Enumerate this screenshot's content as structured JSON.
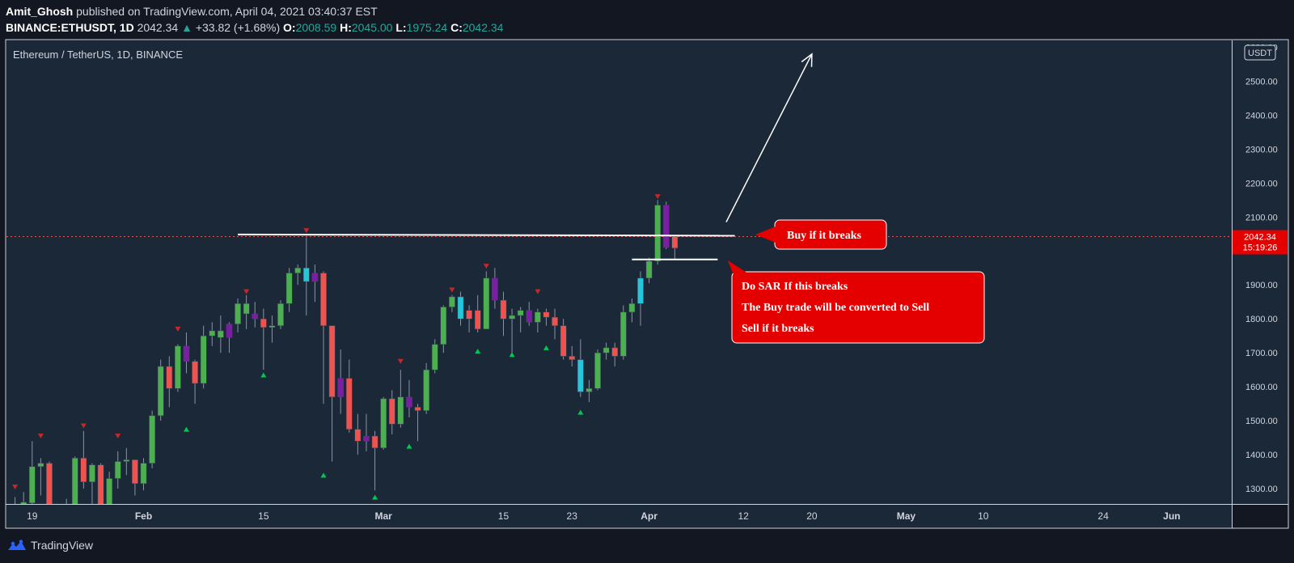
{
  "header": {
    "author": "Amit_Ghosh",
    "published": "published on TradingView.com, April 04, 2021 03:40:37 EST",
    "symbol": "BINANCE:ETHUSDT, 1D",
    "last": "2042.34",
    "change": "+33.82 (+1.68%)",
    "o_label": "O:",
    "o": "2008.59",
    "h_label": "H:",
    "h": "2045.00",
    "l_label": "L:",
    "l": "1975.24",
    "c_label": "C:",
    "c": "2042.34"
  },
  "pane_title": "Ethereum / TetherUS, 1D, BINANCE",
  "currency_badge": "USDT",
  "price_label": {
    "price": "2042.34",
    "countdown": "15:19:26"
  },
  "footer": {
    "brand": "TradingView"
  },
  "colors": {
    "background": "#1b2838",
    "frame": "#131722",
    "up": "#4caf50",
    "down": "#ef5350",
    "cyan": "#26c6da",
    "purple": "#7b1fa2",
    "callout": "#e50000",
    "marker_up": "#00c853",
    "marker_down": "#c62828"
  },
  "annotations": {
    "buy_callout": "Buy if it breaks",
    "sar_lines": [
      "Do SAR If this breaks",
      "The Buy trade will be converted to Sell",
      "Sell if it breaks"
    ]
  },
  "chart_data": {
    "type": "candlestick",
    "title": "Ethereum / TetherUS, 1D, BINANCE",
    "y_ticks": [
      "2600.00",
      "2500.00",
      "2400.00",
      "2300.00",
      "2200.00",
      "2100.00",
      "1900.00",
      "1800.00",
      "1700.00",
      "1600.00",
      "1500.00",
      "1400.00",
      "1300.00"
    ],
    "x_ticks": [
      {
        "label": "19",
        "date": "2021-01-19"
      },
      {
        "label": "Feb",
        "date": "2021-02-01"
      },
      {
        "label": "15",
        "date": "2021-02-15"
      },
      {
        "label": "Mar",
        "date": "2021-03-01"
      },
      {
        "label": "15",
        "date": "2021-03-15"
      },
      {
        "label": "23",
        "date": "2021-03-23"
      },
      {
        "label": "Apr",
        "date": "2021-04-01"
      },
      {
        "label": "12",
        "date": "2021-04-12"
      },
      {
        "label": "20",
        "date": "2021-04-20"
      },
      {
        "label": "May",
        "date": "2021-05-01"
      },
      {
        "label": "10",
        "date": "2021-05-10"
      },
      {
        "label": "24",
        "date": "2021-05-24"
      },
      {
        "label": "Jun",
        "date": "2021-06-01"
      }
    ],
    "ylim": [
      1255,
      2620
    ],
    "xlim": [
      "2021-01-16",
      "2021-06-08"
    ],
    "grid": false,
    "current_price": 2042.34,
    "resistance": {
      "price": 2045,
      "from": "2021-02-12",
      "to": "2021-04-11"
    },
    "support": {
      "price": 1975,
      "from": "2021-03-30",
      "to": "2021-04-09"
    },
    "arrow": {
      "from": {
        "date": "2021-04-10",
        "price": 2085
      },
      "to": {
        "date": "2021-04-20",
        "price": 2580
      }
    },
    "candles": [
      {
        "date": "2021-01-17",
        "o": 1235,
        "h": 1275,
        "l": 1180,
        "c": 1230,
        "k": "down"
      },
      {
        "date": "2021-01-18",
        "o": 1232,
        "h": 1290,
        "l": 1215,
        "c": 1260,
        "k": "up"
      },
      {
        "date": "2021-01-19",
        "o": 1258,
        "h": 1440,
        "l": 1240,
        "c": 1365,
        "k": "up"
      },
      {
        "date": "2021-01-20",
        "o": 1365,
        "h": 1390,
        "l": 1280,
        "c": 1375,
        "k": "up"
      },
      {
        "date": "2021-01-21",
        "o": 1375,
        "h": 1380,
        "l": 1120,
        "c": 1110,
        "k": "down"
      },
      {
        "date": "2021-01-22",
        "o": 1110,
        "h": 1250,
        "l": 1100,
        "c": 1235,
        "k": "up"
      },
      {
        "date": "2021-01-23",
        "o": 1235,
        "h": 1270,
        "l": 1215,
        "c": 1230,
        "k": "down"
      },
      {
        "date": "2021-01-24",
        "o": 1230,
        "h": 1395,
        "l": 1225,
        "c": 1390,
        "k": "up"
      },
      {
        "date": "2021-01-25",
        "o": 1390,
        "h": 1470,
        "l": 1300,
        "c": 1320,
        "k": "down"
      },
      {
        "date": "2021-01-26",
        "o": 1320,
        "h": 1375,
        "l": 1250,
        "c": 1370,
        "k": "up"
      },
      {
        "date": "2021-01-27",
        "o": 1370,
        "h": 1375,
        "l": 1240,
        "c": 1250,
        "k": "down"
      },
      {
        "date": "2021-01-28",
        "o": 1250,
        "h": 1350,
        "l": 1235,
        "c": 1330,
        "k": "up"
      },
      {
        "date": "2021-01-29",
        "o": 1330,
        "h": 1410,
        "l": 1300,
        "c": 1380,
        "k": "up"
      },
      {
        "date": "2021-01-30",
        "o": 1380,
        "h": 1420,
        "l": 1340,
        "c": 1385,
        "k": "up"
      },
      {
        "date": "2021-01-31",
        "o": 1385,
        "h": 1385,
        "l": 1280,
        "c": 1315,
        "k": "down"
      },
      {
        "date": "2021-02-01",
        "o": 1315,
        "h": 1390,
        "l": 1295,
        "c": 1375,
        "k": "up"
      },
      {
        "date": "2021-02-02",
        "o": 1375,
        "h": 1530,
        "l": 1360,
        "c": 1515,
        "k": "up"
      },
      {
        "date": "2021-02-03",
        "o": 1515,
        "h": 1680,
        "l": 1500,
        "c": 1660,
        "k": "up"
      },
      {
        "date": "2021-02-04",
        "o": 1660,
        "h": 1690,
        "l": 1540,
        "c": 1595,
        "k": "down"
      },
      {
        "date": "2021-02-05",
        "o": 1595,
        "h": 1725,
        "l": 1585,
        "c": 1720,
        "k": "up"
      },
      {
        "date": "2021-02-06",
        "o": 1720,
        "h": 1760,
        "l": 1640,
        "c": 1675,
        "k": "purple"
      },
      {
        "date": "2021-02-07",
        "o": 1675,
        "h": 1680,
        "l": 1550,
        "c": 1610,
        "k": "down"
      },
      {
        "date": "2021-02-08",
        "o": 1610,
        "h": 1780,
        "l": 1595,
        "c": 1750,
        "k": "up"
      },
      {
        "date": "2021-02-09",
        "o": 1750,
        "h": 1790,
        "l": 1720,
        "c": 1765,
        "k": "up"
      },
      {
        "date": "2021-02-10",
        "o": 1765,
        "h": 1810,
        "l": 1700,
        "c": 1745,
        "k": "up"
      },
      {
        "date": "2021-02-11",
        "o": 1745,
        "h": 1790,
        "l": 1700,
        "c": 1785,
        "k": "purple"
      },
      {
        "date": "2021-02-12",
        "o": 1785,
        "h": 1860,
        "l": 1760,
        "c": 1845,
        "k": "up"
      },
      {
        "date": "2021-02-13",
        "o": 1845,
        "h": 1870,
        "l": 1770,
        "c": 1815,
        "k": "up"
      },
      {
        "date": "2021-02-14",
        "o": 1815,
        "h": 1850,
        "l": 1775,
        "c": 1800,
        "k": "purple"
      },
      {
        "date": "2021-02-15",
        "o": 1800,
        "h": 1830,
        "l": 1650,
        "c": 1775,
        "k": "down"
      },
      {
        "date": "2021-02-16",
        "o": 1775,
        "h": 1810,
        "l": 1730,
        "c": 1780,
        "k": "up"
      },
      {
        "date": "2021-02-17",
        "o": 1780,
        "h": 1855,
        "l": 1770,
        "c": 1845,
        "k": "up"
      },
      {
        "date": "2021-02-18",
        "o": 1845,
        "h": 1950,
        "l": 1820,
        "c": 1935,
        "k": "up"
      },
      {
        "date": "2021-02-19",
        "o": 1935,
        "h": 1960,
        "l": 1900,
        "c": 1950,
        "k": "up"
      },
      {
        "date": "2021-02-20",
        "o": 1950,
        "h": 2040,
        "l": 1810,
        "c": 1910,
        "k": "cyan"
      },
      {
        "date": "2021-02-21",
        "o": 1910,
        "h": 1960,
        "l": 1850,
        "c": 1935,
        "k": "purple"
      },
      {
        "date": "2021-02-22",
        "o": 1935,
        "h": 1940,
        "l": 1550,
        "c": 1780,
        "k": "down"
      },
      {
        "date": "2021-02-23",
        "o": 1780,
        "h": 1780,
        "l": 1380,
        "c": 1570,
        "k": "down"
      },
      {
        "date": "2021-02-24",
        "o": 1570,
        "h": 1710,
        "l": 1520,
        "c": 1625,
        "k": "purple"
      },
      {
        "date": "2021-02-25",
        "o": 1625,
        "h": 1680,
        "l": 1465,
        "c": 1475,
        "k": "down"
      },
      {
        "date": "2021-02-26",
        "o": 1475,
        "h": 1520,
        "l": 1400,
        "c": 1440,
        "k": "down"
      },
      {
        "date": "2021-02-27",
        "o": 1440,
        "h": 1520,
        "l": 1410,
        "c": 1455,
        "k": "purple"
      },
      {
        "date": "2021-02-28",
        "o": 1455,
        "h": 1470,
        "l": 1295,
        "c": 1420,
        "k": "down"
      },
      {
        "date": "2021-03-01",
        "o": 1420,
        "h": 1570,
        "l": 1415,
        "c": 1565,
        "k": "up"
      },
      {
        "date": "2021-03-02",
        "o": 1565,
        "h": 1590,
        "l": 1460,
        "c": 1490,
        "k": "down"
      },
      {
        "date": "2021-03-03",
        "o": 1490,
        "h": 1650,
        "l": 1480,
        "c": 1570,
        "k": "up"
      },
      {
        "date": "2021-03-04",
        "o": 1570,
        "h": 1620,
        "l": 1510,
        "c": 1540,
        "k": "purple"
      },
      {
        "date": "2021-03-05",
        "o": 1540,
        "h": 1550,
        "l": 1440,
        "c": 1530,
        "k": "down"
      },
      {
        "date": "2021-03-06",
        "o": 1530,
        "h": 1670,
        "l": 1520,
        "c": 1650,
        "k": "up"
      },
      {
        "date": "2021-03-07",
        "o": 1650,
        "h": 1740,
        "l": 1640,
        "c": 1725,
        "k": "up"
      },
      {
        "date": "2021-03-08",
        "o": 1725,
        "h": 1840,
        "l": 1700,
        "c": 1835,
        "k": "up"
      },
      {
        "date": "2021-03-09",
        "o": 1835,
        "h": 1870,
        "l": 1820,
        "c": 1865,
        "k": "up"
      },
      {
        "date": "2021-03-10",
        "o": 1865,
        "h": 1880,
        "l": 1780,
        "c": 1800,
        "k": "cyan"
      },
      {
        "date": "2021-03-11",
        "o": 1800,
        "h": 1840,
        "l": 1760,
        "c": 1825,
        "k": "down"
      },
      {
        "date": "2021-03-12",
        "o": 1825,
        "h": 1870,
        "l": 1760,
        "c": 1770,
        "k": "down"
      },
      {
        "date": "2021-03-13",
        "o": 1770,
        "h": 1940,
        "l": 1770,
        "c": 1920,
        "k": "up"
      },
      {
        "date": "2021-03-14",
        "o": 1920,
        "h": 1950,
        "l": 1830,
        "c": 1855,
        "k": "purple"
      },
      {
        "date": "2021-03-15",
        "o": 1855,
        "h": 1880,
        "l": 1750,
        "c": 1800,
        "k": "down"
      },
      {
        "date": "2021-03-16",
        "o": 1800,
        "h": 1830,
        "l": 1700,
        "c": 1810,
        "k": "up"
      },
      {
        "date": "2021-03-17",
        "o": 1810,
        "h": 1835,
        "l": 1760,
        "c": 1825,
        "k": "up"
      },
      {
        "date": "2021-03-18",
        "o": 1825,
        "h": 1850,
        "l": 1780,
        "c": 1790,
        "k": "purple"
      },
      {
        "date": "2021-03-19",
        "o": 1790,
        "h": 1830,
        "l": 1760,
        "c": 1820,
        "k": "up"
      },
      {
        "date": "2021-03-20",
        "o": 1820,
        "h": 1830,
        "l": 1780,
        "c": 1805,
        "k": "down"
      },
      {
        "date": "2021-03-21",
        "o": 1805,
        "h": 1830,
        "l": 1740,
        "c": 1780,
        "k": "down"
      },
      {
        "date": "2021-03-22",
        "o": 1780,
        "h": 1800,
        "l": 1680,
        "c": 1690,
        "k": "down"
      },
      {
        "date": "2021-03-23",
        "o": 1690,
        "h": 1720,
        "l": 1660,
        "c": 1680,
        "k": "down"
      },
      {
        "date": "2021-03-24",
        "o": 1680,
        "h": 1740,
        "l": 1570,
        "c": 1585,
        "k": "cyan"
      },
      {
        "date": "2021-03-25",
        "o": 1585,
        "h": 1620,
        "l": 1555,
        "c": 1595,
        "k": "up"
      },
      {
        "date": "2021-03-26",
        "o": 1595,
        "h": 1710,
        "l": 1590,
        "c": 1700,
        "k": "up"
      },
      {
        "date": "2021-03-27",
        "o": 1700,
        "h": 1730,
        "l": 1680,
        "c": 1715,
        "k": "up"
      },
      {
        "date": "2021-03-28",
        "o": 1715,
        "h": 1730,
        "l": 1660,
        "c": 1690,
        "k": "down"
      },
      {
        "date": "2021-03-29",
        "o": 1690,
        "h": 1840,
        "l": 1680,
        "c": 1820,
        "k": "up"
      },
      {
        "date": "2021-03-30",
        "o": 1820,
        "h": 1860,
        "l": 1790,
        "c": 1845,
        "k": "up"
      },
      {
        "date": "2021-03-31",
        "o": 1845,
        "h": 1940,
        "l": 1780,
        "c": 1920,
        "k": "cyan"
      },
      {
        "date": "2021-04-01",
        "o": 1920,
        "h": 1980,
        "l": 1905,
        "c": 1970,
        "k": "up"
      },
      {
        "date": "2021-04-02",
        "o": 1970,
        "h": 2150,
        "l": 1960,
        "c": 2135,
        "k": "up"
      },
      {
        "date": "2021-04-03",
        "o": 2135,
        "h": 2145,
        "l": 2005,
        "c": 2010,
        "k": "purple"
      },
      {
        "date": "2021-04-04",
        "o": 2008.59,
        "h": 2045,
        "l": 1975.24,
        "c": 2042.34,
        "k": "down"
      }
    ],
    "markers_down": [
      {
        "date": "2021-01-17",
        "price": 1305
      },
      {
        "date": "2021-01-20",
        "price": 1455
      },
      {
        "date": "2021-01-25",
        "price": 1485
      },
      {
        "date": "2021-01-29",
        "price": 1455
      },
      {
        "date": "2021-02-05",
        "price": 1770
      },
      {
        "date": "2021-02-13",
        "price": 1880
      },
      {
        "date": "2021-02-20",
        "price": 2060
      },
      {
        "date": "2021-03-03",
        "price": 1675
      },
      {
        "date": "2021-03-09",
        "price": 1885
      },
      {
        "date": "2021-03-13",
        "price": 1955
      },
      {
        "date": "2021-03-19",
        "price": 1880
      },
      {
        "date": "2021-04-02",
        "price": 2160
      }
    ],
    "markers_up": [
      {
        "date": "2021-02-06",
        "price": 1475
      },
      {
        "date": "2021-02-15",
        "price": 1635
      },
      {
        "date": "2021-02-22",
        "price": 1340
      },
      {
        "date": "2021-02-28",
        "price": 1275
      },
      {
        "date": "2021-03-04",
        "price": 1425
      },
      {
        "date": "2021-03-12",
        "price": 1705
      },
      {
        "date": "2021-03-16",
        "price": 1695
      },
      {
        "date": "2021-03-20",
        "price": 1715
      },
      {
        "date": "2021-03-24",
        "price": 1525
      }
    ]
  }
}
